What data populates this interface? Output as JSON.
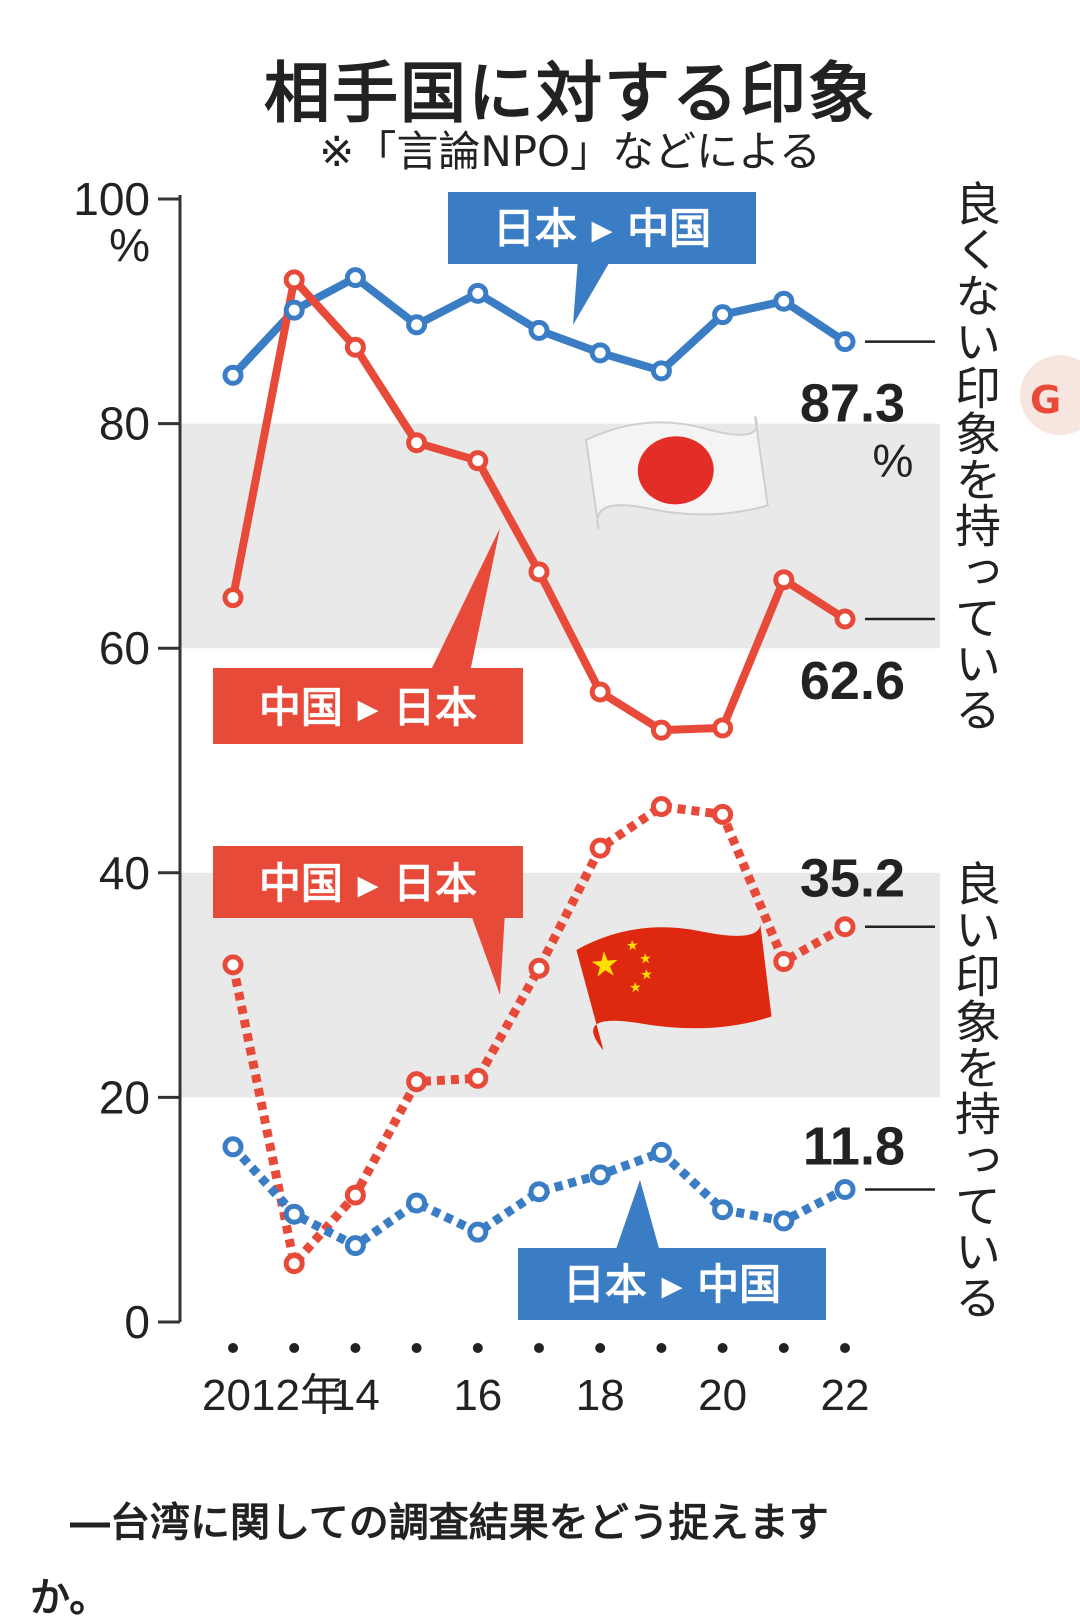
{
  "title": "相手国に対する印象",
  "subtitle": "※「言論NPO」などによる",
  "question": "―台湾に関しての調査結果をどう捉えます",
  "question_tail": "か。",
  "colors": {
    "japan_to_china": "#3b7dc4",
    "china_to_japan": "#e84a3a",
    "band": "#e9e9e9"
  },
  "chart_data": {
    "type": "line",
    "x": [
      2012,
      2013,
      2014,
      2015,
      2016,
      2017,
      2018,
      2019,
      2020,
      2021,
      2022
    ],
    "x_tick_labels": [
      "2012年",
      "14",
      "16",
      "18",
      "20",
      "22"
    ],
    "x_tick_values": [
      2012,
      2014,
      2016,
      2018,
      2020,
      2022
    ],
    "y_ticks": [
      "0",
      "20",
      "40",
      "60",
      "80",
      "100"
    ],
    "y_unit": "%",
    "ylim": [
      0,
      100
    ],
    "bands": [
      [
        60,
        80
      ],
      [
        20,
        40
      ]
    ],
    "right_labels": {
      "upper": "良くない印象を持っている",
      "lower": "良い印象を持っている"
    },
    "series": [
      {
        "name": "日本 ▸ 中国",
        "group": "negative",
        "style": "solid",
        "color": "#3b7dc4",
        "values": [
          84.3,
          90.1,
          93.0,
          88.8,
          91.6,
          88.3,
          86.3,
          84.7,
          89.7,
          90.9,
          87.3
        ],
        "end_label": "87.3",
        "end_unit": "%"
      },
      {
        "name": "中国 ▸ 日本",
        "group": "negative",
        "style": "solid",
        "color": "#e84a3a",
        "values": [
          64.5,
          92.8,
          86.8,
          78.3,
          76.7,
          66.8,
          56.1,
          52.7,
          52.9,
          66.1,
          62.6
        ],
        "end_label": "62.6"
      },
      {
        "name": "中国 ▸ 日本",
        "group": "positive",
        "style": "dashed",
        "color": "#e84a3a",
        "values": [
          31.8,
          5.2,
          11.3,
          21.4,
          21.7,
          31.5,
          42.2,
          45.9,
          45.2,
          32.1,
          35.2
        ],
        "end_label": "35.2"
      },
      {
        "name": "日本 ▸ 中国",
        "group": "positive",
        "style": "dashed",
        "color": "#3b7dc4",
        "values": [
          15.6,
          9.6,
          6.8,
          10.6,
          8.0,
          11.6,
          13.1,
          15.1,
          10.0,
          9.0,
          11.8
        ],
        "end_label": "11.8"
      }
    ]
  }
}
